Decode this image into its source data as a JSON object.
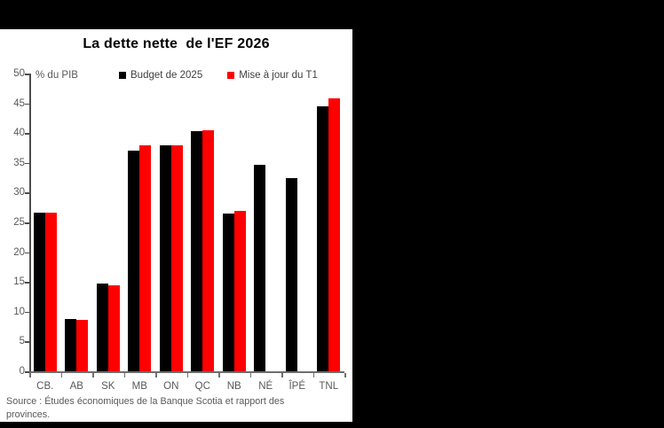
{
  "window": {
    "background": "#000000",
    "panel_background": "#ffffff"
  },
  "chart_data": {
    "type": "bar",
    "title": "La dette nette  de l'EF 2026",
    "ylabel_inside": "% du PIB",
    "categories": [
      "CB.",
      "AB",
      "SK",
      "MB",
      "ON",
      "QC",
      "NB",
      "NÉ",
      "ÎPÉ",
      "TNL"
    ],
    "series": [
      {
        "name": "Budget de 2025",
        "color": "#000000",
        "values": [
          26.7,
          8.8,
          14.8,
          37.0,
          38.0,
          40.4,
          26.5,
          34.6,
          32.5,
          44.5
        ]
      },
      {
        "name": "Mise à jour du T1",
        "color": "#ff0000",
        "values": [
          26.6,
          8.6,
          14.5,
          38.0,
          38.0,
          40.5,
          26.9,
          null,
          null,
          45.8
        ]
      }
    ],
    "ylim": [
      0,
      50
    ],
    "yticks": [
      50,
      45,
      40,
      35,
      30,
      25,
      20,
      15,
      10,
      5,
      0
    ],
    "grid": false,
    "legend_position": "top"
  },
  "source": {
    "line1": "Source : Études économiques de la Banque Scotia et rapport des",
    "line2": "provinces."
  }
}
